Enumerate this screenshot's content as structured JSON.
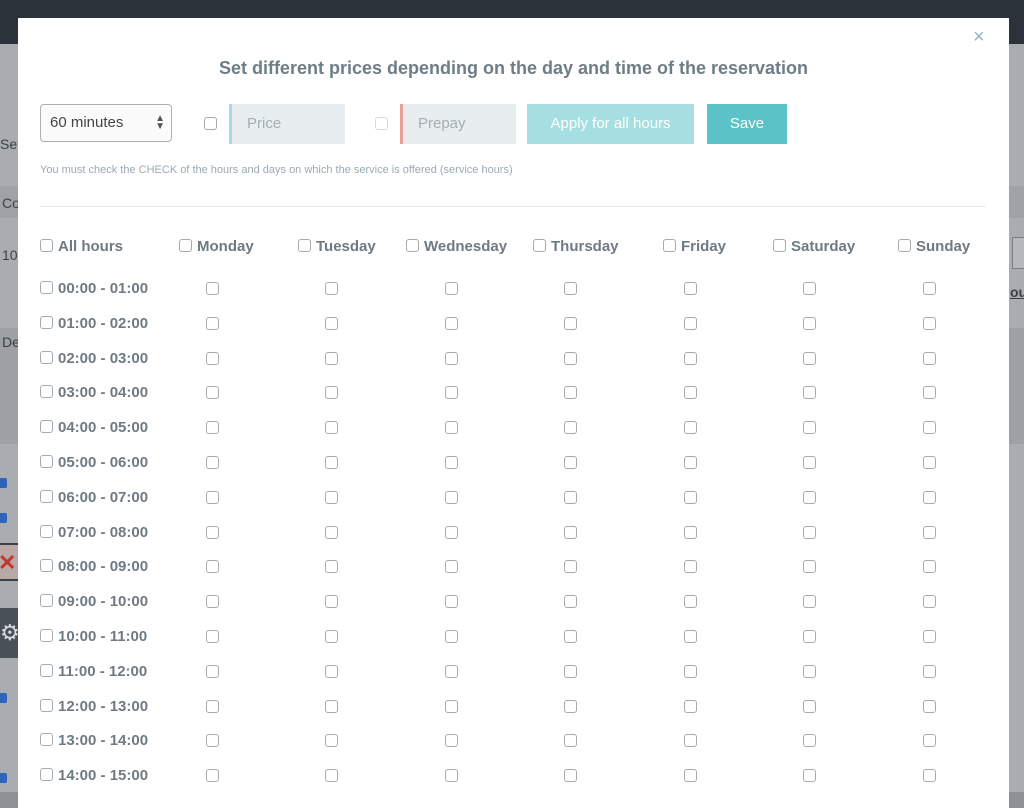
{
  "background_fragments": {
    "left_label_1": "Se",
    "left_label_2": "Co",
    "left_label_3": "10",
    "left_label_4": "De",
    "right_label_1": "ou"
  },
  "modal": {
    "title": "Set different prices depending on the day and time of the reservation",
    "close_glyph": "×",
    "duration_select": {
      "value": "60 minutes"
    },
    "price_field": {
      "placeholder": "Price"
    },
    "prepay_field": {
      "placeholder": "Prepay"
    },
    "apply_button": "Apply for all hours",
    "save_button": "Save",
    "hint": "You must check the CHECK of the hours and days on which the service is offered (service hours)",
    "all_hours_label": "All hours",
    "days": [
      "Monday",
      "Tuesday",
      "Wednesday",
      "Thursday",
      "Friday",
      "Saturday",
      "Sunday"
    ],
    "hours": [
      "00:00 - 01:00",
      "01:00 - 02:00",
      "02:00 - 03:00",
      "03:00 - 04:00",
      "04:00 - 05:00",
      "05:00 - 06:00",
      "06:00 - 07:00",
      "07:00 - 08:00",
      "08:00 - 09:00",
      "09:00 - 10:00",
      "10:00 - 11:00",
      "11:00 - 12:00",
      "12:00 - 13:00",
      "13:00 - 14:00",
      "14:00 - 15:00"
    ]
  },
  "colors": {
    "title": "#6f7d86",
    "apply_button_bg": "#a6dfe1",
    "save_button_bg": "#5bc2c7",
    "price_accent": "#a7dcde",
    "prepay_accent": "#e8a090"
  }
}
